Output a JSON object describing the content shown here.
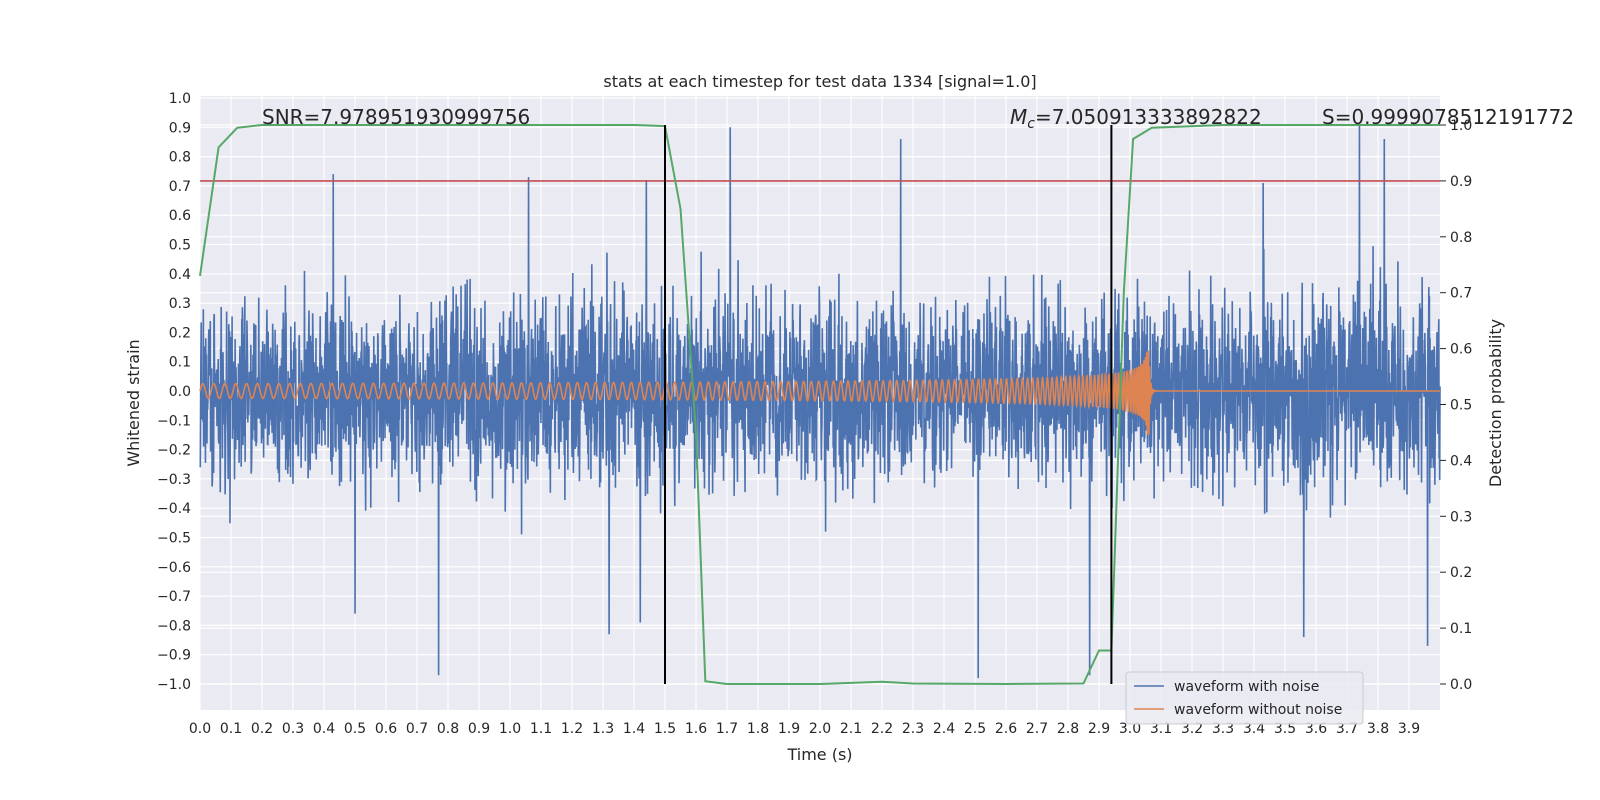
{
  "chart_data": {
    "type": "line",
    "title": "stats at each timestep for test data 1334 [signal=1.0]",
    "xlabel": "Time (s)",
    "ylabel": "Whitened strain",
    "y2label": "Detection probability",
    "xlim": [
      0.0,
      4.0
    ],
    "ylim": [
      -1.0,
      1.0
    ],
    "y2lim": [
      0.0,
      1.0
    ],
    "xticks": [
      "0.0",
      "0.1",
      "0.2",
      "0.3",
      "0.4",
      "0.5",
      "0.6",
      "0.7",
      "0.8",
      "0.9",
      "1.0",
      "1.1",
      "1.2",
      "1.3",
      "1.4",
      "1.5",
      "1.6",
      "1.7",
      "1.8",
      "1.9",
      "2.0",
      "2.1",
      "2.2",
      "2.3",
      "2.4",
      "2.5",
      "2.6",
      "2.7",
      "2.8",
      "2.9",
      "3.0",
      "3.1",
      "3.2",
      "3.3",
      "3.4",
      "3.5",
      "3.6",
      "3.7",
      "3.8",
      "3.9"
    ],
    "yticks": [
      "1.0",
      "0.9",
      "0.8",
      "0.7",
      "0.6",
      "0.5",
      "0.4",
      "0.3",
      "0.2",
      "0.1",
      "0.0",
      "−0.1",
      "−0.2",
      "−0.3",
      "−0.4",
      "−0.5",
      "−0.6",
      "−0.7",
      "−0.8",
      "−0.9",
      "−1.0"
    ],
    "y2ticks": [
      "1.0",
      "0.9",
      "0.8",
      "0.7",
      "0.6",
      "0.5",
      "0.4",
      "0.3",
      "0.2",
      "0.1",
      "0.0"
    ],
    "annotations": {
      "snr": "SNR=7.978951930999756",
      "mc_prefix": "M",
      "mc_sub": "c",
      "mc_value": "=7.050913333892822",
      "s": "S=0.9999078512191772"
    },
    "legend": {
      "position": "lower-right",
      "entries": [
        "waveform with noise",
        "waveform without noise"
      ]
    },
    "colors": {
      "noise": "#4c72b0",
      "clean": "#dd8452",
      "prob": "#55a868",
      "threshold": "#c44e52",
      "vline": "#000000",
      "background": "#eaeaf2",
      "grid": "#ffffff"
    },
    "threshold_prob": 0.9,
    "vlines_time": [
      1.5,
      2.94
    ],
    "noise": {
      "description_free": true,
      "sigma": 0.22,
      "n_samples": 4096,
      "spikes": [
        {
          "t": 0.77,
          "v": -0.97
        },
        {
          "t": 1.71,
          "v": 0.9
        },
        {
          "t": 2.26,
          "v": 0.86
        },
        {
          "t": 2.51,
          "v": -0.98
        },
        {
          "t": 2.87,
          "v": -0.97
        },
        {
          "t": 3.74,
          "v": 0.91
        },
        {
          "t": 3.82,
          "v": 0.86
        },
        {
          "t": 0.43,
          "v": 0.74
        },
        {
          "t": 1.06,
          "v": 0.73
        },
        {
          "t": 1.44,
          "v": 0.72
        },
        {
          "t": 3.43,
          "v": 0.71
        },
        {
          "t": 0.5,
          "v": -0.76
        },
        {
          "t": 1.32,
          "v": -0.83
        },
        {
          "t": 1.42,
          "v": -0.79
        },
        {
          "t": 3.56,
          "v": -0.84
        },
        {
          "t": 3.96,
          "v": -0.87
        }
      ]
    },
    "clean": {
      "merger_time": 3.06,
      "amp_start": 0.025,
      "amp_peak": 0.2,
      "freq_start": 28,
      "freq_end": 220
    },
    "probability": {
      "t": [
        0.0,
        0.06,
        0.12,
        0.2,
        0.5,
        1.0,
        1.4,
        1.5,
        1.55,
        1.6,
        1.63,
        1.7,
        2.0,
        2.1,
        2.2,
        2.3,
        2.6,
        2.85,
        2.9,
        2.94,
        2.98,
        3.01,
        3.07,
        3.3,
        3.6,
        4.0
      ],
      "p": [
        0.73,
        0.96,
        0.995,
        1.0,
        1.0,
        1.0,
        1.0,
        0.998,
        0.85,
        0.45,
        0.005,
        0.0,
        0.0,
        0.002,
        0.004,
        0.001,
        0.0,
        0.001,
        0.06,
        0.06,
        0.7,
        0.975,
        0.995,
        1.0,
        1.0,
        1.0
      ]
    }
  }
}
